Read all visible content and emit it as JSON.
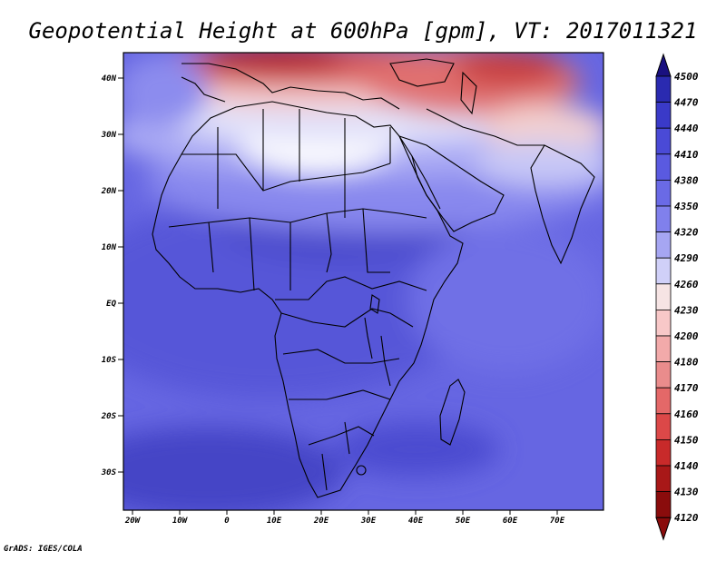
{
  "title": "Geopotential Height at 600hPa [gpm], VT: 2017011321",
  "footer": "GrADS: IGES/COLA",
  "axes": {
    "lat_labels": [
      "40N",
      "30N",
      "20N",
      "10N",
      "EQ",
      "10S",
      "20S",
      "30S"
    ],
    "lon_labels": [
      "20W",
      "10W",
      "0",
      "10E",
      "20E",
      "30E",
      "40E",
      "50E",
      "60E",
      "70E"
    ]
  },
  "colorbar": {
    "levels": [
      "4500",
      "4470",
      "4440",
      "4410",
      "4380",
      "4350",
      "4320",
      "4290",
      "4260",
      "4230",
      "4200",
      "4180",
      "4170",
      "4160",
      "4150",
      "4140",
      "4130",
      "4120"
    ],
    "colors": [
      "#1a1080",
      "#2a2ab0",
      "#3a3ac8",
      "#4a4ad6",
      "#5a5ae0",
      "#6a6ae6",
      "#8080ec",
      "#a6a6f2",
      "#d0d0f8",
      "#f6e4e4",
      "#f8c8c8",
      "#f2aaaa",
      "#ea8c8c",
      "#e46868",
      "#dc4848",
      "#c82a2a",
      "#a81818",
      "#8a0c0c"
    ]
  },
  "chart_data": {
    "type": "heatmap",
    "title": "Geopotential Height at 600hPa [gpm], VT: 2017011321",
    "variable": "Geopotential Height",
    "units": "gpm",
    "level": "600hPa",
    "valid_time": "2017011321",
    "x_range": [
      -22,
      80
    ],
    "y_range": [
      -37,
      45
    ],
    "x_ticks": [
      -20,
      -10,
      0,
      10,
      20,
      30,
      40,
      50,
      60,
      70
    ],
    "y_ticks": [
      40,
      30,
      20,
      10,
      0,
      -10,
      -20,
      -30
    ],
    "contour_levels": [
      4120,
      4130,
      4140,
      4150,
      4160,
      4170,
      4180,
      4200,
      4230,
      4260,
      4290,
      4320,
      4350,
      4380,
      4410,
      4440,
      4470,
      4500
    ]
  }
}
